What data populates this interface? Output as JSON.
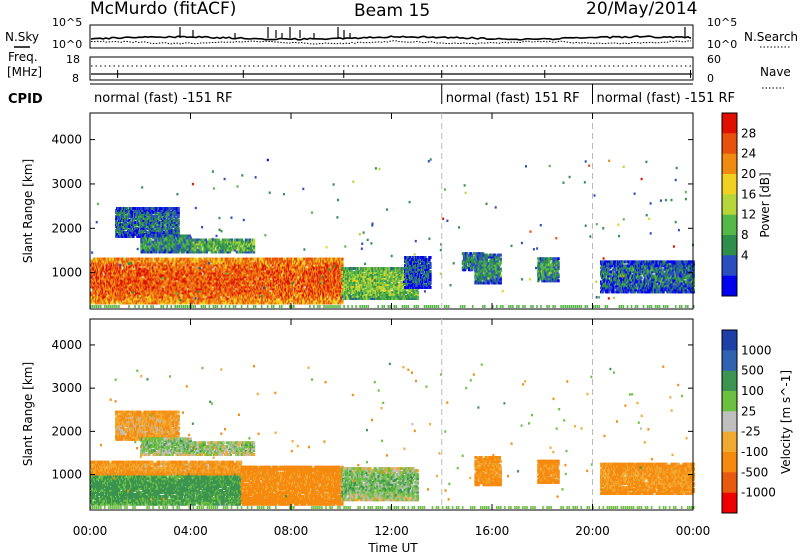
{
  "header": {
    "title_left": "McMurdo (fitACF)",
    "title_center": "Beam 15",
    "title_right": "20/May/2014"
  },
  "aux_panels": {
    "nsky_label": "N.Sky",
    "nsearch_label": "N.Search",
    "noise_ticks_left": [
      "10^5",
      "10^0"
    ],
    "noise_ticks_right": [
      "10^5",
      "10^0"
    ],
    "freq_label_1": "Freq.",
    "freq_label_2": "[MHz]",
    "freq_ticks": [
      "18",
      "8"
    ],
    "nave_label": "Nave",
    "nave_ticks": [
      "60",
      "0"
    ],
    "cpid_label": "CPID"
  },
  "cpid_segments": [
    {
      "label": "normal (fast) -151 RF",
      "start_hour": 0,
      "end_hour": 14
    },
    {
      "label": "normal (fast) 151 RF",
      "start_hour": 14,
      "end_hour": 20
    },
    {
      "label": "normal (fast) -151 RF",
      "start_hour": 20,
      "end_hour": 24
    }
  ],
  "time_axis": {
    "label": "Time UT",
    "ticks": [
      "00:00",
      "04:00",
      "08:00",
      "12:00",
      "16:00",
      "20:00",
      "00:00"
    ]
  },
  "power_panel": {
    "ylabel": "Slant Range [km]",
    "yticks": [
      "4000",
      "3000",
      "2000",
      "1000"
    ],
    "colorbar_label": "Power [dB]",
    "colorbar_ticks": [
      "28",
      "24",
      "20",
      "16",
      "12",
      "8",
      "4"
    ]
  },
  "velocity_panel": {
    "ylabel": "Slant Range [km]",
    "yticks": [
      "4000",
      "3000",
      "2000",
      "1000"
    ],
    "colorbar_label": "Velocity [m s^-1]",
    "colorbar_ticks": [
      "1000",
      "500",
      "100",
      "25",
      "-25",
      "-100",
      "-500",
      "-1000"
    ]
  },
  "colors": {
    "power_scale": [
      "#0000ee",
      "#2a4dbf",
      "#2e8f4c",
      "#57b84a",
      "#b7d63a",
      "#f0d020",
      "#f08a10",
      "#e85010",
      "#e01000"
    ],
    "velocity_scale": [
      "#ee0000",
      "#e85a10",
      "#f58a0f",
      "#f2a930",
      "#bfbfbf",
      "#6cc03f",
      "#3b9450",
      "#2f62b0",
      "#1e3fa8"
    ],
    "grid": "#bbbbbb",
    "frame": "#000000"
  },
  "chart_data": [
    {
      "type": "heatmap",
      "title": "McMurdo (fitACF) Beam 15 20/May/2014",
      "xlabel": "Time UT",
      "ylabel": "Slant Range [km]",
      "colorbar": "Power [dB]",
      "xlim_hours": [
        0,
        24
      ],
      "ylim_km": [
        180,
        4600
      ],
      "clim_db": [
        0,
        32
      ],
      "grid": false,
      "blobs": [
        {
          "t0": 0.0,
          "t1": 10.0,
          "r0": 350,
          "r1": 1350,
          "value": 26
        },
        {
          "t0": 10.0,
          "t1": 13.0,
          "r0": 450,
          "r1": 1150,
          "value": 14
        },
        {
          "t0": 1.0,
          "t1": 3.5,
          "r0": 1850,
          "r1": 2500,
          "value": 7
        },
        {
          "t0": 2.0,
          "t1": 4.0,
          "r0": 1500,
          "r1": 1900,
          "value": 9
        },
        {
          "t0": 4.0,
          "t1": 6.5,
          "r0": 1500,
          "r1": 1800,
          "value": 12
        },
        {
          "t0": 12.5,
          "t1": 13.5,
          "r0": 700,
          "r1": 1400,
          "value": 6
        },
        {
          "t0": 14.8,
          "t1": 15.6,
          "r0": 1100,
          "r1": 1500,
          "value": 8
        },
        {
          "t0": 15.3,
          "t1": 16.3,
          "r0": 800,
          "r1": 1450,
          "value": 9
        },
        {
          "t0": 17.8,
          "t1": 18.6,
          "r0": 850,
          "r1": 1350,
          "value": 10
        },
        {
          "t0": 20.3,
          "t1": 24.0,
          "r0": 600,
          "r1": 1300,
          "value": 7
        }
      ]
    },
    {
      "type": "heatmap",
      "title": "McMurdo (fitACF) Beam 15 20/May/2014",
      "xlabel": "Time UT",
      "ylabel": "Slant Range [km]",
      "colorbar": "Velocity [m s^-1]",
      "xlim_hours": [
        0,
        24
      ],
      "ylim_km": [
        180,
        4600
      ],
      "clim_ms": [
        -1000,
        1000
      ],
      "grid": false,
      "blobs": [
        {
          "t0": 0.0,
          "t1": 6.0,
          "r0": 350,
          "r1": 1050,
          "value": 150
        },
        {
          "t0": 0.0,
          "t1": 6.0,
          "r0": 1050,
          "r1": 1350,
          "value": -100
        },
        {
          "t0": 6.0,
          "t1": 10.0,
          "r0": 350,
          "r1": 1250,
          "value": -150
        },
        {
          "t0": 10.0,
          "t1": 13.0,
          "r0": 450,
          "r1": 1200,
          "value": 60
        },
        {
          "t0": 1.0,
          "t1": 3.5,
          "r0": 1850,
          "r1": 2500,
          "value": -80
        },
        {
          "t0": 2.0,
          "t1": 4.0,
          "r0": 1500,
          "r1": 1900,
          "value": 60
        },
        {
          "t0": 4.0,
          "t1": 6.5,
          "r0": 1500,
          "r1": 1800,
          "value": 40
        },
        {
          "t0": 15.3,
          "t1": 16.3,
          "r0": 800,
          "r1": 1450,
          "value": -120
        },
        {
          "t0": 17.8,
          "t1": 18.6,
          "r0": 850,
          "r1": 1350,
          "value": -130
        },
        {
          "t0": 20.3,
          "t1": 24.0,
          "r0": 600,
          "r1": 1300,
          "value": -110
        }
      ]
    }
  ]
}
